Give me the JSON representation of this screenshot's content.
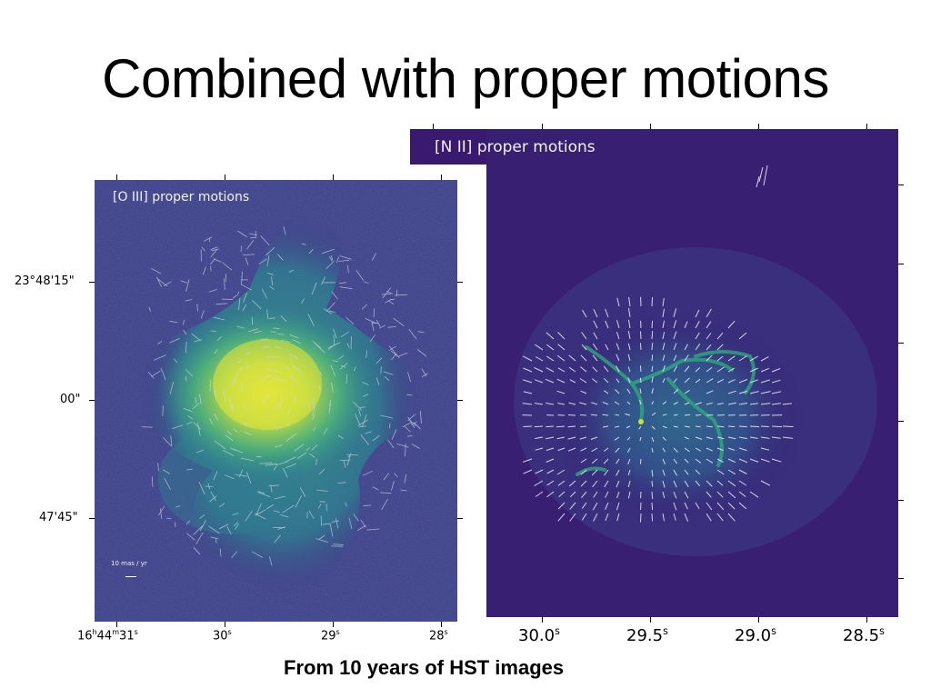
{
  "slide": {
    "title": "Combined with proper motions",
    "caption": "From 10 years of HST images"
  },
  "left_panel": {
    "label": "[O III] proper motions",
    "scale_bar_label": "10 mas / yr",
    "y_ticks": [
      "23°48'15\"",
      "00\"",
      "47'45\""
    ],
    "x_ticks": [
      {
        "main": "16",
        "sup1": "h",
        "mid": "44",
        "sup2": "m",
        "end": "31",
        "sup3": "s"
      },
      {
        "main": "30",
        "sup3": "s"
      },
      {
        "main": "29",
        "sup3": "s"
      },
      {
        "main": "28",
        "sup3": "s"
      }
    ],
    "colors": {
      "background": "#3b3a84",
      "nebula_core": "#d8e24a",
      "vectors": "#cfd8e8"
    }
  },
  "right_panel": {
    "label": "[N II] proper motions",
    "x_ticks": [
      {
        "main": "30.0",
        "sup3": "s"
      },
      {
        "main": "29.5",
        "sup3": "s"
      },
      {
        "main": "29.0",
        "sup3": "s"
      },
      {
        "main": "28.5",
        "sup3": "s"
      }
    ],
    "colors": {
      "background": "#3a1a6e",
      "filaments": "#35b779",
      "vectors": "#ffffff"
    }
  }
}
